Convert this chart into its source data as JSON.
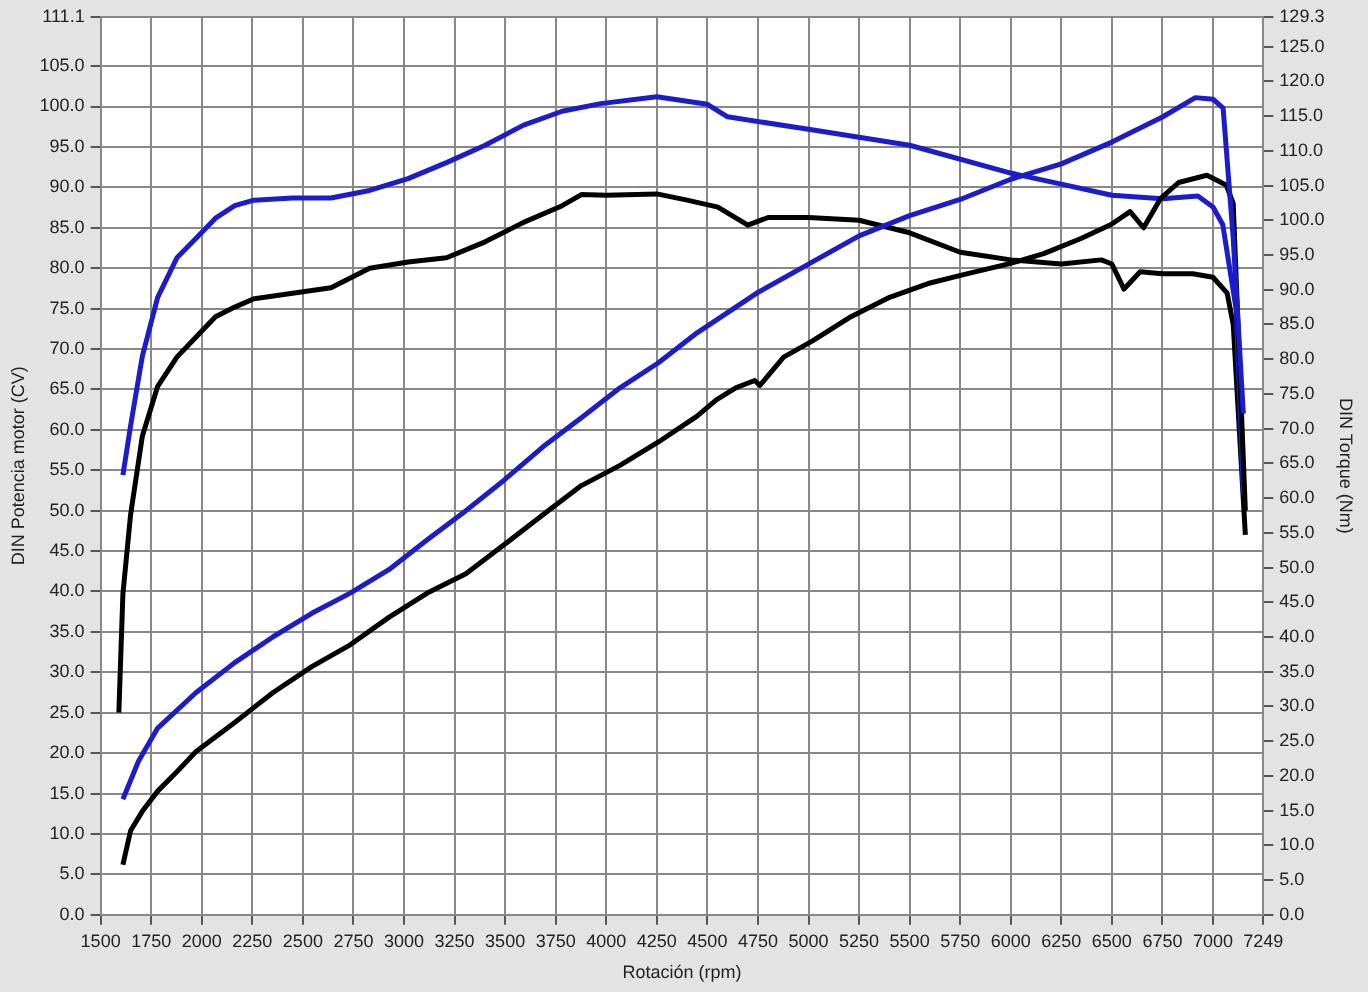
{
  "chart_data": {
    "type": "line",
    "xlabel": "Rotación (rpm)",
    "ylabel": "DIN Potencia motor (CV)",
    "y2label": "DIN Torque (Nm)",
    "xlim": [
      1500,
      7249
    ],
    "xticks": [
      1500,
      1750,
      2000,
      2250,
      2500,
      2750,
      3000,
      3250,
      3500,
      3750,
      4000,
      4250,
      4500,
      4750,
      5000,
      5250,
      5500,
      5750,
      6000,
      6250,
      6500,
      6750,
      7000,
      7249
    ],
    "ylim": [
      0,
      111.1
    ],
    "yticks": [
      {
        "value": 0,
        "label": "0.0"
      },
      {
        "value": 5,
        "label": "5.0"
      },
      {
        "value": 10,
        "label": "10.0"
      },
      {
        "value": 15,
        "label": "15.0"
      },
      {
        "value": 20,
        "label": "20.0"
      },
      {
        "value": 25,
        "label": "25.0"
      },
      {
        "value": 30,
        "label": "30.0"
      },
      {
        "value": 35,
        "label": "35.0"
      },
      {
        "value": 40,
        "label": "40.0"
      },
      {
        "value": 45,
        "label": "45.0"
      },
      {
        "value": 50,
        "label": "50.0"
      },
      {
        "value": 55,
        "label": "55.0"
      },
      {
        "value": 60,
        "label": "60.0"
      },
      {
        "value": 65,
        "label": "65.0"
      },
      {
        "value": 70,
        "label": "70.0"
      },
      {
        "value": 75,
        "label": "75.0"
      },
      {
        "value": 80,
        "label": "80.0"
      },
      {
        "value": 85,
        "label": "85.0"
      },
      {
        "value": 90,
        "label": "90.0"
      },
      {
        "value": 95,
        "label": "95.0"
      },
      {
        "value": 100,
        "label": "100.0"
      },
      {
        "value": 105,
        "label": "105.0"
      },
      111.1
    ],
    "y2lim": [
      0,
      129.3
    ],
    "y2ticks": [
      {
        "value": 0,
        "label": "0.0"
      },
      {
        "value": 5,
        "label": "5.0"
      },
      {
        "value": 10,
        "label": "10.0"
      },
      {
        "value": 15,
        "label": "15.0"
      },
      {
        "value": 20,
        "label": "20.0"
      },
      {
        "value": 25,
        "label": "25.0"
      },
      {
        "value": 30,
        "label": "30.0"
      },
      {
        "value": 35,
        "label": "35.0"
      },
      {
        "value": 40,
        "label": "40.0"
      },
      {
        "value": 45,
        "label": "45.0"
      },
      {
        "value": 50,
        "label": "50.0"
      },
      {
        "value": 55,
        "label": "55.0"
      },
      {
        "value": 60,
        "label": "60.0"
      },
      {
        "value": 65,
        "label": "65.0"
      },
      {
        "value": 70,
        "label": "70.0"
      },
      {
        "value": 75,
        "label": "75.0"
      },
      {
        "value": 80,
        "label": "80.0"
      },
      {
        "value": 85,
        "label": "85.0"
      },
      {
        "value": 90,
        "label": "90.0"
      },
      {
        "value": 95,
        "label": "95.0"
      },
      {
        "value": 100,
        "label": "100.0"
      },
      {
        "value": 105,
        "label": "105.0"
      },
      {
        "value": 110,
        "label": "110.0"
      },
      {
        "value": 115,
        "label": "115.0"
      },
      {
        "value": 120,
        "label": "120.0"
      },
      {
        "value": 125,
        "label": "125.0"
      },
      129.3
    ],
    "grid": true,
    "marker": "none",
    "line_style": "solid",
    "series": [
      {
        "color": "#1c1cc8",
        "x": [
          1610,
          1687,
          1782,
          1972,
          2163,
          2353,
          2544,
          2734,
          2925,
          3115,
          3306,
          3496,
          3687,
          3877,
          4068,
          4258,
          4449,
          4750,
          5000,
          5250,
          5500,
          5750,
          6000,
          6250,
          6500,
          6750,
          6913,
          7000,
          7050,
          7100,
          7150
        ],
        "values": [
          14.3,
          19,
          23.1,
          27.5,
          31.2,
          34.4,
          37.3,
          39.8,
          42.7,
          46.4,
          50,
          53.8,
          57.9,
          61.5,
          65.2,
          68.3,
          72,
          77,
          80.5,
          84,
          86.5,
          88.5,
          91,
          92.9,
          95.6,
          98.7,
          101.1,
          100.9,
          99.8,
          83.7,
          62
        ]
      },
      {
        "color": "#000000",
        "x": [
          1610,
          1648,
          1706,
          1782,
          1877,
          1972,
          2163,
          2353,
          2544,
          2734,
          2925,
          3115,
          3306,
          3496,
          3687,
          3877,
          4068,
          4258,
          4449,
          4544,
          4640,
          4734,
          4760,
          4877,
          5020,
          5210,
          5401,
          5591,
          5782,
          6000,
          6163,
          6350,
          6496,
          6590,
          6657,
          6740,
          6830,
          6970,
          7065,
          7100,
          7160
        ],
        "values": [
          6.2,
          10.4,
          12.8,
          15.3,
          17.7,
          20.2,
          23.8,
          27.5,
          30.7,
          33.4,
          36.8,
          39.8,
          42.2,
          45.8,
          49.5,
          53.1,
          55.6,
          58.5,
          61.7,
          63.7,
          65.2,
          66.1,
          65.5,
          69,
          71,
          74,
          76.4,
          78.1,
          79.3,
          80.6,
          81.8,
          83.7,
          85.4,
          87,
          85,
          88.6,
          90.6,
          91.5,
          90.3,
          88,
          50
        ]
      },
      {
        "color": "#1c1cc8",
        "axis": "y2",
        "x": [
          1610,
          1648,
          1706,
          1782,
          1877,
          1972,
          2068,
          2163,
          2258,
          2449,
          2639,
          2830,
          3020,
          3210,
          3401,
          3591,
          3782,
          3972,
          4250,
          4500,
          4600,
          5000,
          5500,
          6000,
          6250,
          6500,
          6750,
          6925,
          7000,
          7048,
          7114,
          7150
        ],
        "values": [
          63.3,
          70.4,
          80.4,
          88.9,
          94.6,
          97.4,
          100.3,
          102.1,
          102.9,
          103.2,
          103.2,
          104.3,
          106,
          108.3,
          110.8,
          113.7,
          115.7,
          116.8,
          117.8,
          116.7,
          114.9,
          113.1,
          110.8,
          106.8,
          105.2,
          103.6,
          103.1,
          103.5,
          101.9,
          99.4,
          87.3,
          60.5
        ]
      },
      {
        "color": "#000000",
        "axis": "y2",
        "x": [
          1590,
          1610,
          1648,
          1706,
          1782,
          1877,
          1972,
          2068,
          2163,
          2258,
          2449,
          2639,
          2830,
          3020,
          3210,
          3401,
          3591,
          3782,
          3877,
          4000,
          4250,
          4400,
          4552,
          4700,
          4800,
          5000,
          5250,
          5500,
          5750,
          6000,
          6250,
          6448,
          6500,
          6560,
          6640,
          6750,
          6900,
          7000,
          7070,
          7100,
          7160
        ],
        "values": [
          29.1,
          46.2,
          57.6,
          68.9,
          76.1,
          80.3,
          83.2,
          86.1,
          87.5,
          88.7,
          89.5,
          90.3,
          93.1,
          94,
          94.6,
          96.9,
          99.7,
          102.1,
          103.7,
          103.6,
          103.8,
          102.9,
          101.9,
          99.3,
          100.4,
          100.4,
          100,
          98.2,
          95.4,
          94.3,
          93.7,
          94.3,
          93.7,
          90.1,
          92.6,
          92.3,
          92.3,
          91.8,
          89.5,
          85,
          54.7
        ]
      }
    ]
  }
}
